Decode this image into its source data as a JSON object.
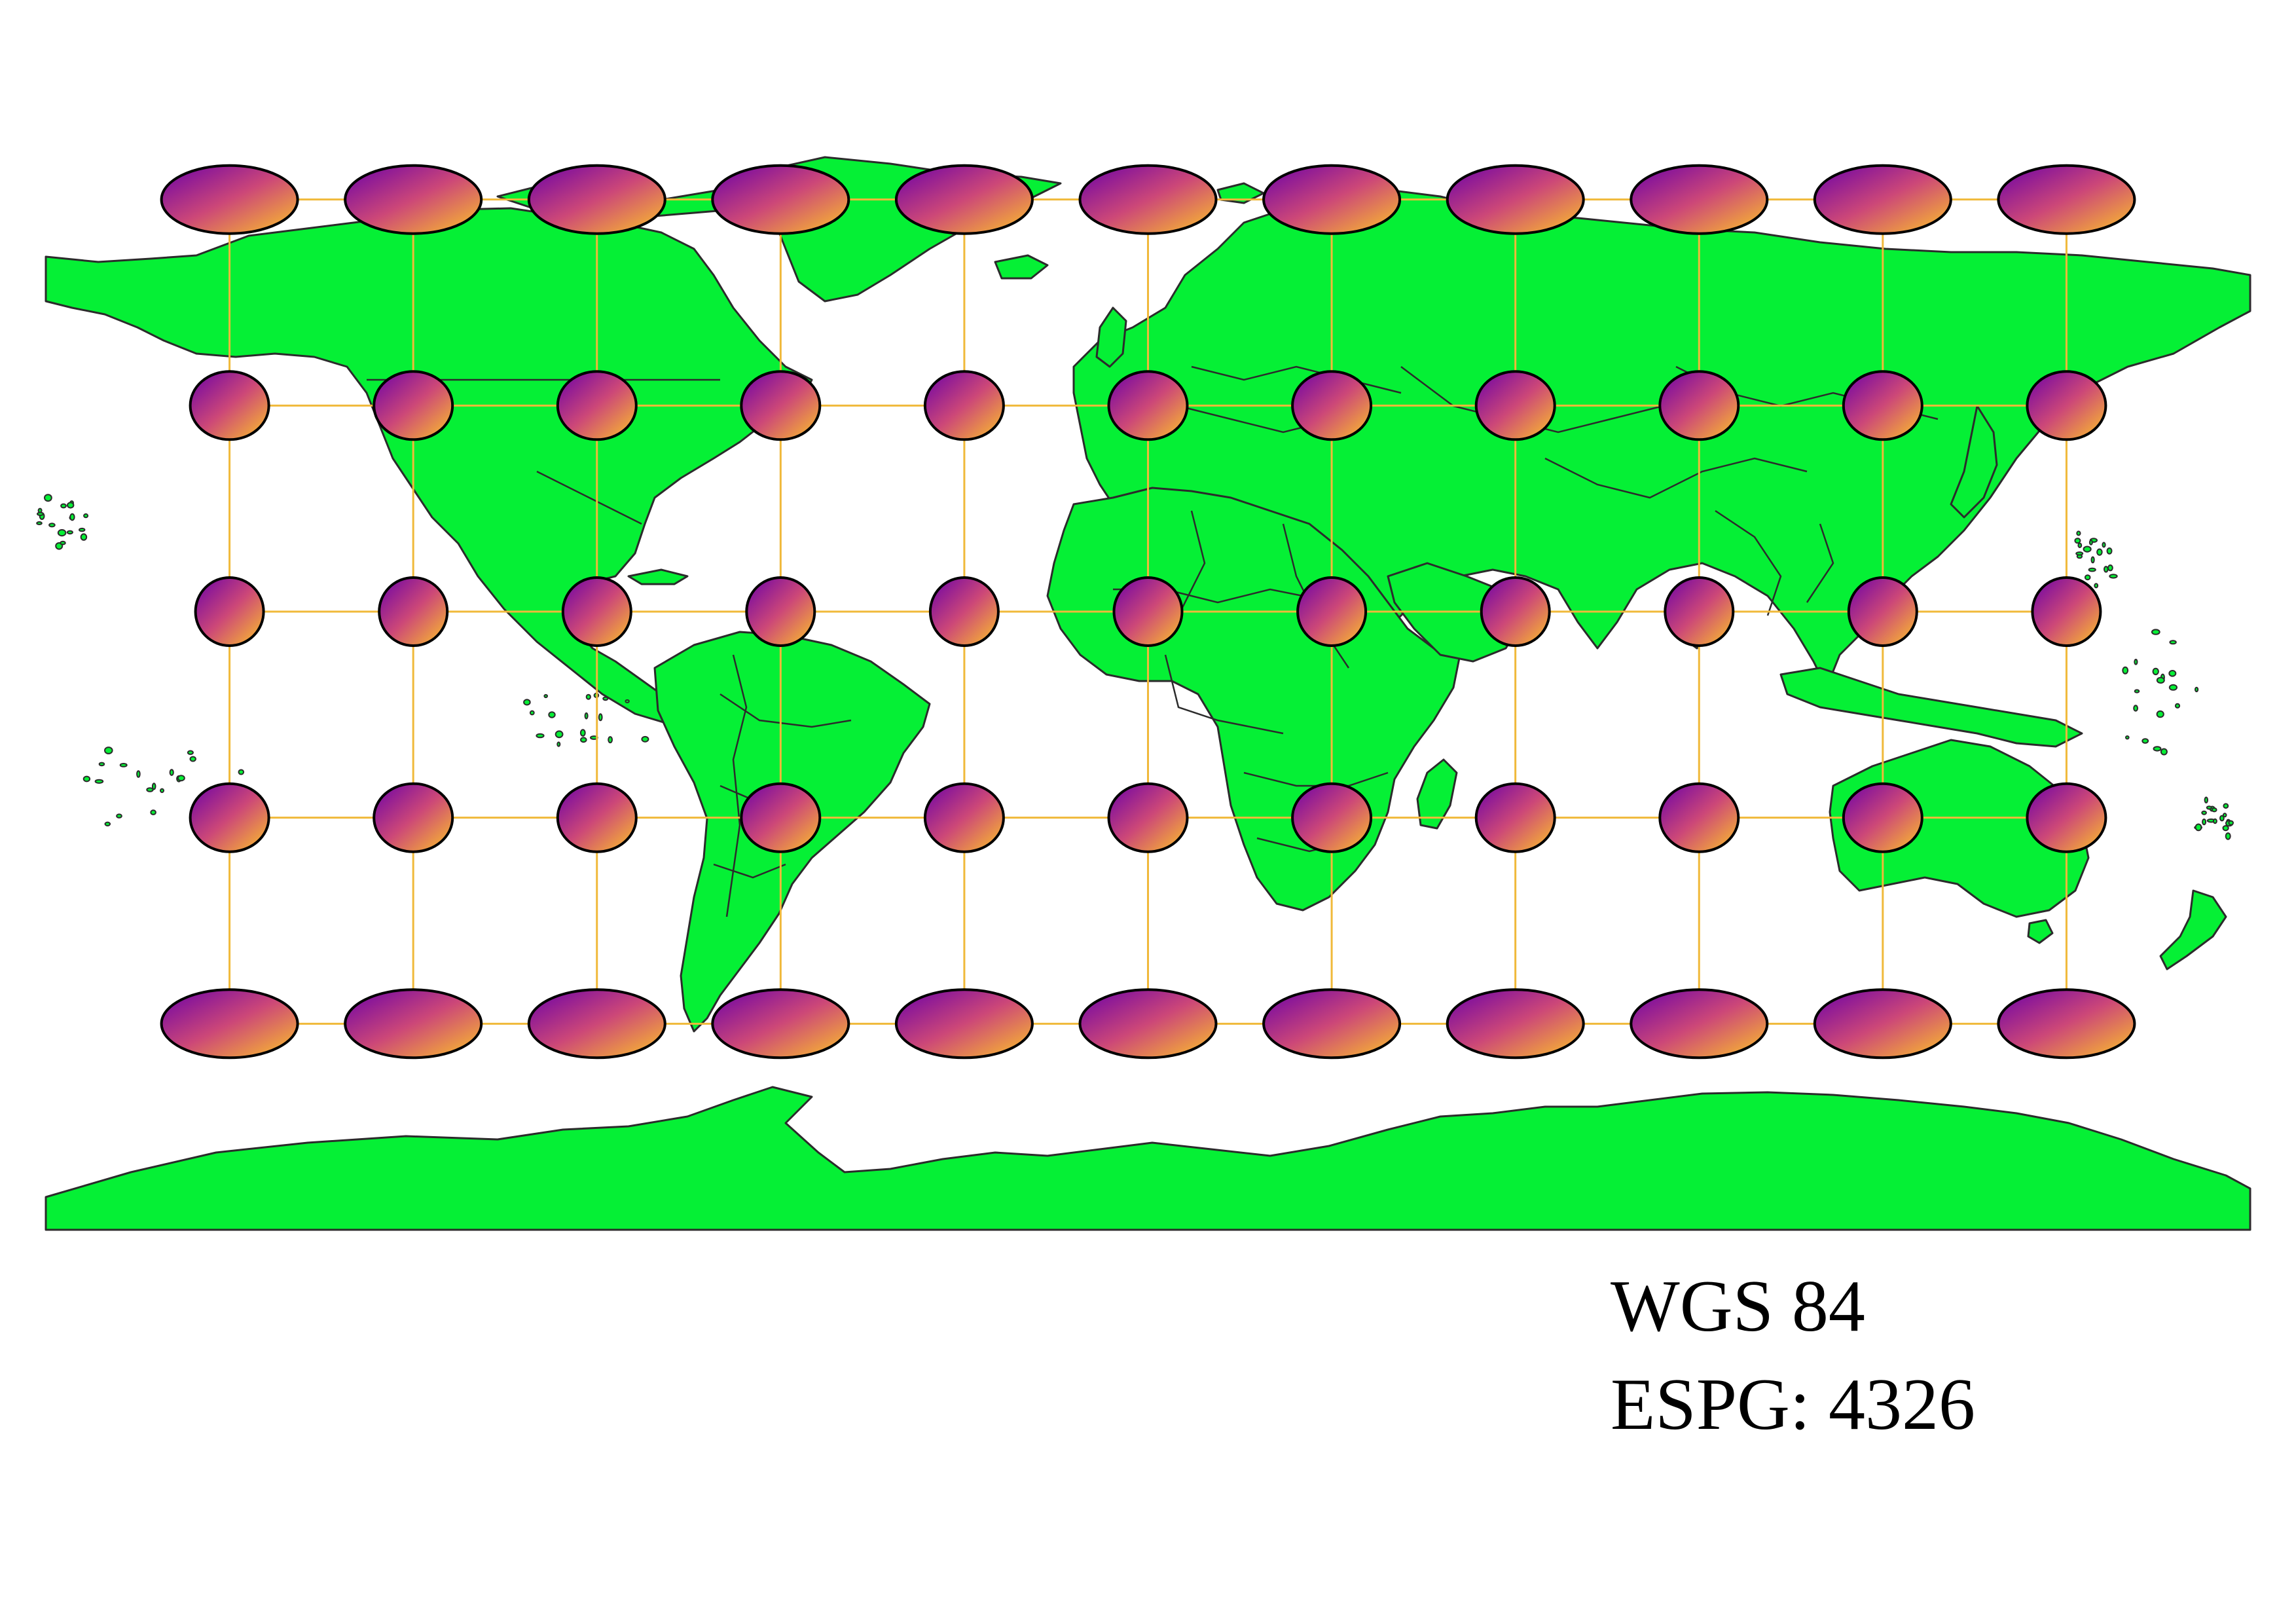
{
  "map": {
    "projection_name": "WGS 84",
    "epsg_label": "ESPG: 4326",
    "extent": {
      "lon": [
        -180,
        180
      ],
      "lat": [
        -90,
        90
      ]
    },
    "colors": {
      "land": "#05f035",
      "outline": "#2b2b2b",
      "ocean": "#ffffff",
      "graticule": "#f0b93a",
      "indicatrix_gradient_start": "#6a00a8",
      "indicatrix_gradient_mid": "#cc4778",
      "indicatrix_gradient_end": "#fdc527",
      "indicatrix_stroke": "#000000"
    },
    "graticule": {
      "longitudes": [
        -150,
        -120,
        -90,
        -60,
        -30,
        0,
        30,
        60,
        90,
        120,
        150
      ],
      "latitudes": [
        60,
        30,
        0,
        -30,
        -60
      ]
    },
    "tissot_indicatrices": {
      "longitudes": [
        -150,
        -120,
        -90,
        -60,
        -30,
        0,
        30,
        60,
        90,
        120,
        150
      ],
      "latitudes": [
        60,
        30,
        0,
        -30,
        -60
      ],
      "gradient": "purple-to-orange"
    }
  }
}
